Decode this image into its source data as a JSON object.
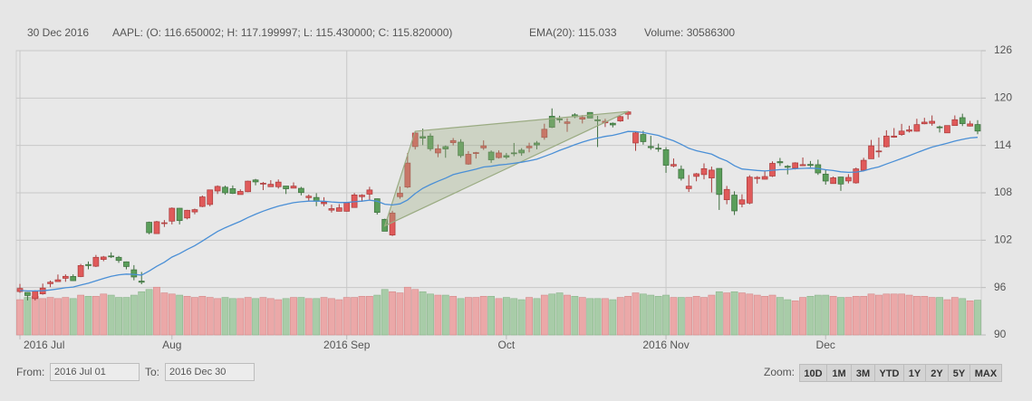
{
  "chart_data": {
    "type": "candlestick",
    "info": {
      "date": "30 Dec 2016",
      "ohlc": "AAPL: (O: 116.650002; H: 117.199997; L: 115.430000; C: 115.820000)",
      "ema": "EMA(20): 115.033",
      "volume": "Volume: 30586300"
    },
    "ylim": [
      90,
      126
    ],
    "yticks": [
      90,
      96,
      102,
      108,
      114,
      120,
      126
    ],
    "y2lim": [
      0,
      250000000
    ],
    "xlim": [
      0,
      126
    ],
    "xticks": [
      {
        "value": 0,
        "label": "2016 Jul",
        "major": true
      },
      {
        "value": 20,
        "label": "Aug",
        "major": false
      },
      {
        "value": 43,
        "label": "2016 Sep",
        "major": true
      },
      {
        "value": 64,
        "label": "Oct",
        "major": false
      },
      {
        "value": 85,
        "label": "2016 Nov",
        "major": true
      },
      {
        "value": 106,
        "label": "Dec",
        "major": false
      }
    ],
    "grid": true,
    "series": [
      {
        "type": "candlestick",
        "up_color": "#e05a5a",
        "down_color": "#5a9e5a",
        "open": [
          95.49,
          95.39,
          94.6,
          95.2,
          96.49,
          96.75,
          97.17,
          97.41,
          97.39,
          98.92,
          98.7,
          99.56,
          100.0,
          99.83,
          99.26,
          98.25,
          96.82,
          104.27,
          102.83,
          104.19,
          104.41,
          106.05,
          104.81,
          105.58,
          106.27,
          106.52,
          108.23,
          108.71,
          108.52,
          107.78,
          108.14,
          109.63,
          109.1,
          108.77,
          108.77,
          108.86,
          108.59,
          108.57,
          107.39,
          107.41,
          106.62,
          105.8,
          105.66,
          105.66,
          106.14,
          107.51,
          107.83,
          107.25,
          104.64,
          102.65,
          107.51,
          108.73,
          113.86,
          115.12,
          115.19,
          113.05,
          113.85,
          114.35,
          114.42,
          111.64,
          113.0,
          113.69,
          113.16,
          112.46,
          112.71,
          113.06,
          113.4,
          113.7,
          114.31,
          115.02,
          117.7,
          117.35,
          116.79,
          117.88,
          117.33,
          118.18,
          117.25,
          116.86,
          116.81,
          117.1,
          117.95,
          114.31,
          115.39,
          113.87,
          113.65,
          113.46,
          111.4,
          110.98,
          108.53,
          110.08,
          110.31,
          109.88,
          111.09,
          107.12,
          107.71,
          106.57,
          106.7,
          109.81,
          109.72,
          110.12,
          111.95,
          111.36,
          111.13,
          111.43,
          111.6,
          111.56,
          110.37,
          109.17,
          110.0,
          109.5,
          109.26,
          110.86,
          112.31,
          113.29,
          113.84,
          115.04,
          115.38,
          115.8,
          115.8,
          116.74,
          116.8,
          116.35,
          115.59,
          116.52,
          117.52,
          116.45,
          116.65
        ],
        "high": [
          96.47,
          95.4,
          95.66,
          96.5,
          96.89,
          97.65,
          97.67,
          97.67,
          98.99,
          99.3,
          100.13,
          100.0,
          100.46,
          100.0,
          99.3,
          98.84,
          97.97,
          104.35,
          104.45,
          104.55,
          106.15,
          106.07,
          105.84,
          106.0,
          107.65,
          108.37,
          108.94,
          108.9,
          108.93,
          108.44,
          109.54,
          109.76,
          109.37,
          109.6,
          109.69,
          108.86,
          109.32,
          108.75,
          107.79,
          107.95,
          107.44,
          106.5,
          106.57,
          106.8,
          107.97,
          107.81,
          108.76,
          107.27,
          104.72,
          105.72,
          108.79,
          113.03,
          115.73,
          116.13,
          115.53,
          114.12,
          113.99,
          114.94,
          114.79,
          113.28,
          113.18,
          114.64,
          113.37,
          113.37,
          113.05,
          114.31,
          113.66,
          114.34,
          114.56,
          116.75,
          118.69,
          117.76,
          117.44,
          118.08,
          117.84,
          118.21,
          117.76,
          117.38,
          116.91,
          117.74,
          118.36,
          115.7,
          115.86,
          115.21,
          114.23,
          113.77,
          112.35,
          111.46,
          110.25,
          110.51,
          111.72,
          111.32,
          111.09,
          108.87,
          108.19,
          107.81,
          110.23,
          110.11,
          110.82,
          111.99,
          112.42,
          111.51,
          111.87,
          112.47,
          112.03,
          112.2,
          110.94,
          110.07,
          110.03,
          110.36,
          111.19,
          112.43,
          114.7,
          115.0,
          115.92,
          116.2,
          116.73,
          116.5,
          117.38,
          117.5,
          117.8,
          116.51,
          116.52,
          117.8,
          118.02,
          117.11,
          117.199997
        ],
        "low": [
          95.33,
          94.37,
          94.37,
          95.1,
          96.05,
          96.73,
          96.73,
          96.84,
          97.32,
          98.31,
          98.6,
          99.34,
          99.74,
          99.13,
          98.31,
          96.92,
          96.42,
          102.75,
          102.82,
          103.68,
          104.0,
          104.0,
          104.64,
          105.28,
          106.18,
          106.3,
          107.85,
          107.76,
          107.85,
          107.78,
          108.08,
          108.95,
          108.34,
          108.75,
          108.53,
          107.85,
          108.57,
          107.68,
          106.99,
          106.31,
          106.29,
          105.5,
          105.64,
          105.62,
          106.11,
          106.87,
          107.07,
          105.24,
          103.13,
          102.53,
          107.24,
          108.6,
          113.49,
          114.04,
          113.3,
          112.51,
          112.44,
          114.0,
          112.44,
          111.55,
          112.34,
          113.43,
          111.8,
          112.34,
          112.28,
          112.63,
          112.69,
          113.13,
          113.51,
          114.72,
          116.2,
          116.87,
          115.72,
          117.45,
          116.78,
          117.45,
          113.8,
          116.33,
          116.28,
          117.0,
          117.31,
          113.31,
          114.1,
          113.45,
          113.2,
          110.53,
          111.23,
          109.55,
          108.11,
          109.46,
          109.7,
          108.05,
          105.83,
          106.55,
          105.19,
          106.16,
          106.55,
          109.16,
          109.7,
          110.01,
          111.4,
          110.33,
          110.95,
          111.39,
          111.24,
          110.27,
          109.03,
          109.16,
          108.25,
          109.19,
          109.16,
          110.73,
          112.31,
          112.49,
          113.75,
          114.98,
          115.23,
          115.64,
          115.75,
          116.68,
          116.5,
          115.64,
          115.59,
          116.49,
          116.45,
          116.4,
          115.43
        ],
        "close": [
          95.89,
          94.99,
          95.53,
          95.94,
          96.68,
          96.98,
          97.42,
          96.87,
          98.79,
          98.78,
          99.83,
          99.87,
          99.96,
          99.43,
          98.66,
          97.34,
          96.67,
          102.95,
          104.34,
          104.21,
          106.05,
          104.48,
          105.79,
          105.87,
          107.48,
          108.37,
          108.81,
          108.0,
          107.93,
          108.18,
          109.48,
          109.38,
          109.22,
          109.08,
          109.36,
          108.51,
          108.85,
          108.03,
          107.57,
          106.94,
          106.82,
          106.0,
          106.1,
          106.73,
          107.73,
          107.7,
          108.36,
          105.52,
          103.13,
          105.44,
          107.95,
          111.77,
          115.57,
          114.92,
          113.58,
          113.57,
          113.55,
          114.62,
          112.71,
          112.88,
          113.09,
          113.95,
          112.18,
          113.05,
          112.52,
          113.0,
          113.05,
          113.89,
          114.06,
          116.05,
          116.3,
          117.34,
          116.98,
          117.63,
          117.55,
          117.47,
          117.12,
          117.06,
          116.6,
          117.65,
          118.25,
          115.59,
          114.48,
          113.72,
          113.54,
          111.49,
          111.59,
          109.83,
          108.84,
          110.41,
          111.06,
          110.88,
          107.79,
          108.43,
          105.71,
          107.11,
          109.99,
          109.95,
          110.06,
          111.73,
          111.8,
          111.23,
          111.79,
          111.57,
          111.46,
          110.52,
          109.49,
          109.9,
          109.11,
          109.95,
          111.03,
          112.12,
          113.95,
          113.3,
          115.19,
          115.19,
          115.82,
          115.97,
          116.64,
          116.95,
          117.06,
          116.29,
          116.52,
          117.26,
          116.76,
          116.73,
          115.82
        ]
      },
      {
        "type": "volume",
        "axis": "y2",
        "up_color": "#eba8a8",
        "down_color": "#a8cca8",
        "values": [
          31000000,
          33000000,
          34000000,
          32000000,
          33000000,
          32000000,
          33000000,
          32000000,
          35000000,
          34000000,
          34000000,
          36000000,
          35000000,
          33000000,
          33000000,
          35000000,
          38000000,
          40000000,
          42000000,
          37000000,
          36000000,
          35000000,
          34000000,
          33000000,
          34000000,
          33000000,
          32000000,
          33000000,
          32000000,
          32000000,
          33000000,
          32000000,
          33000000,
          32000000,
          31000000,
          32000000,
          33000000,
          33000000,
          32000000,
          32000000,
          33000000,
          32000000,
          31000000,
          33000000,
          33000000,
          34000000,
          34000000,
          35000000,
          40000000,
          38000000,
          37000000,
          42000000,
          40000000,
          38000000,
          36000000,
          35000000,
          35000000,
          34000000,
          32000000,
          33000000,
          33000000,
          34000000,
          34000000,
          32000000,
          33000000,
          32000000,
          31000000,
          33000000,
          32000000,
          35000000,
          36000000,
          37000000,
          35000000,
          34000000,
          33000000,
          32000000,
          32000000,
          32000000,
          31000000,
          33000000,
          34000000,
          37000000,
          36000000,
          35000000,
          34000000,
          35000000,
          33000000,
          33000000,
          33000000,
          34000000,
          33000000,
          35000000,
          38000000,
          37000000,
          38000000,
          37000000,
          36000000,
          35000000,
          34000000,
          35000000,
          33000000,
          31000000,
          30000000,
          33000000,
          34000000,
          35000000,
          35000000,
          34000000,
          33000000,
          33000000,
          34000000,
          34000000,
          36000000,
          35000000,
          36000000,
          36000000,
          36000000,
          35000000,
          34000000,
          34000000,
          33000000,
          33000000,
          31000000,
          33000000,
          32000000,
          30000000,
          30586300
        ]
      },
      {
        "type": "line",
        "color": "#4a8fd6",
        "values": [
          95.63,
          95.57,
          95.57,
          95.6,
          95.7,
          95.82,
          95.97,
          96.06,
          96.32,
          96.55,
          96.86,
          97.15,
          97.42,
          97.61,
          97.71,
          97.67,
          97.58,
          98.09,
          98.69,
          99.21,
          99.86,
          100.3,
          100.82,
          101.3,
          101.89,
          102.51,
          103.11,
          103.57,
          103.99,
          104.39,
          104.87,
          105.3,
          105.67,
          106.0,
          106.32,
          106.53,
          106.75,
          106.87,
          106.94,
          106.94,
          106.93,
          106.84,
          106.77,
          106.77,
          106.86,
          106.94,
          107.07,
          106.93,
          106.56,
          106.46,
          106.6,
          107.09,
          107.9,
          108.57,
          109.04,
          109.47,
          109.86,
          110.31,
          110.54,
          110.76,
          110.99,
          111.27,
          111.36,
          111.52,
          111.61,
          111.74,
          111.87,
          112.06,
          112.25,
          112.61,
          112.96,
          113.38,
          113.72,
          114.09,
          114.42,
          114.71,
          114.94,
          115.14,
          115.28,
          115.51,
          115.77,
          115.75,
          115.63,
          115.45,
          115.27,
          114.91,
          114.59,
          114.14,
          113.64,
          113.33,
          113.11,
          112.9,
          112.41,
          112.03,
          111.43,
          111.02,
          110.92,
          110.83,
          110.76,
          110.85,
          110.94,
          110.97,
          111.05,
          111.1,
          111.13,
          111.07,
          110.92,
          110.82,
          110.66,
          110.59,
          110.63,
          110.77,
          111.07,
          111.28,
          111.65,
          111.99,
          112.35,
          112.7,
          113.08,
          113.45,
          113.79,
          114.03,
          114.27,
          114.55,
          114.76,
          114.95,
          115.033
        ]
      }
    ],
    "annotations": [
      {
        "type": "triangle",
        "x": [
          48,
          52,
          80
        ],
        "y": [
          103.8,
          115.8,
          118.3
        ],
        "color": "#9aab82"
      }
    ]
  },
  "controls": {
    "from_label": "From:",
    "from_value": "2016 Jul 01",
    "to_label": "To:",
    "to_value": "2016 Dec 30",
    "zoom_label": "Zoom:",
    "zoom_buttons": [
      "10D",
      "1M",
      "3M",
      "YTD",
      "1Y",
      "2Y",
      "5Y",
      "MAX"
    ]
  }
}
